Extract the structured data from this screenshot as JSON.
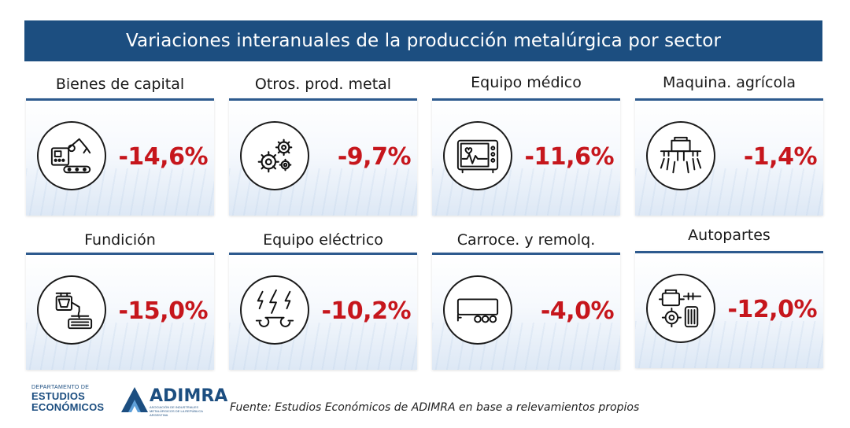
{
  "header": {
    "title": "Variaciones interanuales de la producción metalúrgica por sector"
  },
  "tiles": [
    {
      "label": "Bienes de capital",
      "value": "-14,6%",
      "icon": "robot-arm-icon"
    },
    {
      "label": "Otros. prod. metal",
      "value": "-9,7%",
      "icon": "gears-icon"
    },
    {
      "label": "Equipo médico",
      "value": "-11,6%",
      "icon": "heart-monitor-icon"
    },
    {
      "label": "Maquina. agrícola",
      "value": "-1,4%",
      "icon": "tractor-sprayer-icon"
    },
    {
      "label": "Fundición",
      "value": "-15,0%",
      "icon": "foundry-crucible-icon"
    },
    {
      "label": "Equipo eléctrico",
      "value": "-10,2%",
      "icon": "lightning-wrench-icon"
    },
    {
      "label": "Carroce. y remolq.",
      "value": "-4,0%",
      "icon": "trailer-icon"
    },
    {
      "label": "Autopartes",
      "value": "-12,0%",
      "icon": "engine-parts-icon"
    }
  ],
  "colors": {
    "header_bg": "#1c4e80",
    "value_red": "#c6161c",
    "card_border": "#2d5a8e"
  },
  "footer": {
    "dept_small": "DEPARTAMENTO DE",
    "dept_line1": "ESTUDIOS",
    "dept_line2": "ECONÓMICOS",
    "brand": "ADIMRA",
    "brand_sub": "ASOCIACIÓN DE INDUSTRIALES METALÚRGICOS DE LA REPÚBLICA ARGENTINA",
    "source": "Fuente: Estudios Económicos de ADIMRA en base a relevamientos propios"
  }
}
